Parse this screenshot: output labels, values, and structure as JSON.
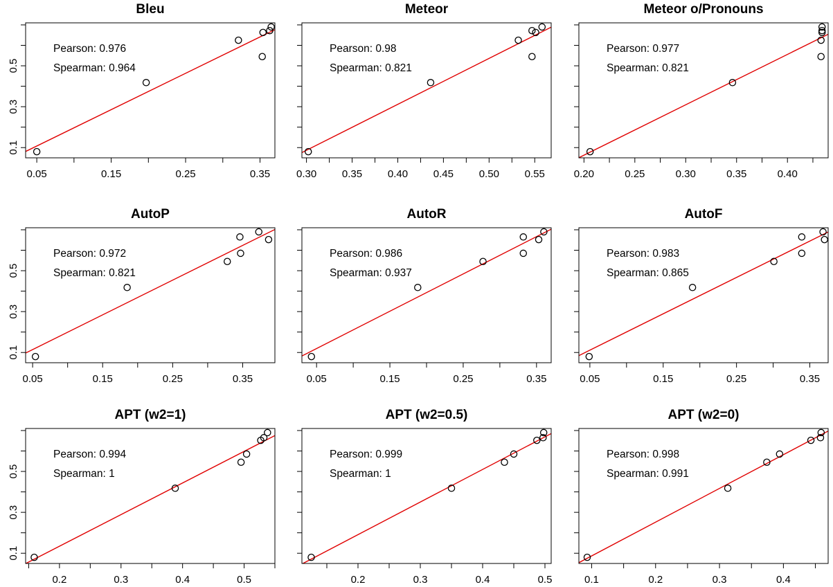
{
  "chart_data": [
    {
      "type": "scatter",
      "title": "Bleu",
      "xlabel": "",
      "ylabel": "",
      "xlim": [
        0.035,
        0.37
      ],
      "ylim": [
        0.05,
        0.71
      ],
      "xticks": [
        "0.05",
        "0.15",
        "0.25",
        "0.35"
      ],
      "yticks": [
        "0.1",
        "0.3",
        "0.5"
      ],
      "show_yticks": true,
      "points": [
        [
          0.05,
          0.08
        ],
        [
          0.197,
          0.418
        ],
        [
          0.321,
          0.625
        ],
        [
          0.353,
          0.545
        ],
        [
          0.354,
          0.663
        ],
        [
          0.363,
          0.672
        ],
        [
          0.365,
          0.69
        ]
      ],
      "annotations": [
        "Pearson: 0.976",
        "Spearman: 0.964"
      ],
      "fit_color": "#e00000"
    },
    {
      "type": "scatter",
      "title": "Meteor",
      "xlabel": "",
      "ylabel": "",
      "xlim": [
        0.295,
        0.568
      ],
      "ylim": [
        0.05,
        0.71
      ],
      "xticks": [
        "0.30",
        "0.35",
        "0.40",
        "0.45",
        "0.50",
        "0.55"
      ],
      "yticks": [
        "0.1",
        "0.3",
        "0.5"
      ],
      "show_yticks": false,
      "points": [
        [
          0.302,
          0.08
        ],
        [
          0.436,
          0.418
        ],
        [
          0.532,
          0.625
        ],
        [
          0.547,
          0.545
        ],
        [
          0.547,
          0.672
        ],
        [
          0.551,
          0.663
        ],
        [
          0.558,
          0.69
        ]
      ],
      "annotations": [
        "Pearson: 0.98",
        "Spearman: 0.821"
      ],
      "fit_color": "#e00000"
    },
    {
      "type": "scatter",
      "title": "Meteor o/Pronouns",
      "xlabel": "",
      "ylabel": "",
      "xlim": [
        0.195,
        0.44
      ],
      "ylim": [
        0.05,
        0.71
      ],
      "xticks": [
        "0.20",
        "0.25",
        "0.30",
        "0.35",
        "0.40"
      ],
      "yticks": [
        "0.1",
        "0.3",
        "0.5"
      ],
      "show_yticks": false,
      "points": [
        [
          0.206,
          0.08
        ],
        [
          0.346,
          0.418
        ],
        [
          0.433,
          0.545
        ],
        [
          0.433,
          0.625
        ],
        [
          0.434,
          0.663
        ],
        [
          0.434,
          0.672
        ],
        [
          0.434,
          0.69
        ]
      ],
      "annotations": [
        "Pearson: 0.977",
        "Spearman: 0.821"
      ],
      "fit_color": "#e00000"
    },
    {
      "type": "scatter",
      "title": "AutoP",
      "xlabel": "",
      "ylabel": "",
      "xlim": [
        0.04,
        0.396
      ],
      "ylim": [
        0.05,
        0.71
      ],
      "xticks": [
        "0.05",
        "0.15",
        "0.25",
        "0.35"
      ],
      "yticks": [
        "0.1",
        "0.3",
        "0.5"
      ],
      "show_yticks": true,
      "points": [
        [
          0.054,
          0.08
        ],
        [
          0.185,
          0.418
        ],
        [
          0.328,
          0.545
        ],
        [
          0.347,
          0.585
        ],
        [
          0.346,
          0.665
        ],
        [
          0.373,
          0.69
        ],
        [
          0.387,
          0.652
        ]
      ],
      "annotations": [
        "Pearson: 0.972",
        "Spearman: 0.821"
      ],
      "fit_color": "#e00000"
    },
    {
      "type": "scatter",
      "title": "AutoR",
      "xlabel": "",
      "ylabel": "",
      "xlim": [
        0.03,
        0.37
      ],
      "ylim": [
        0.05,
        0.71
      ],
      "xticks": [
        "0.05",
        "0.15",
        "0.25",
        "0.35"
      ],
      "yticks": [
        "0.1",
        "0.3",
        "0.5"
      ],
      "show_yticks": false,
      "points": [
        [
          0.043,
          0.08
        ],
        [
          0.188,
          0.418
        ],
        [
          0.277,
          0.545
        ],
        [
          0.332,
          0.585
        ],
        [
          0.332,
          0.665
        ],
        [
          0.353,
          0.652
        ],
        [
          0.36,
          0.69
        ]
      ],
      "annotations": [
        "Pearson: 0.986",
        "Spearman: 0.937"
      ],
      "fit_color": "#e00000"
    },
    {
      "type": "scatter",
      "title": "AutoF",
      "xlabel": "",
      "ylabel": "",
      "xlim": [
        0.035,
        0.375
      ],
      "ylim": [
        0.05,
        0.71
      ],
      "xticks": [
        "0.05",
        "0.15",
        "0.25",
        "0.35"
      ],
      "yticks": [
        "0.1",
        "0.3",
        "0.5"
      ],
      "show_yticks": false,
      "points": [
        [
          0.049,
          0.08
        ],
        [
          0.19,
          0.418
        ],
        [
          0.301,
          0.545
        ],
        [
          0.339,
          0.585
        ],
        [
          0.339,
          0.665
        ],
        [
          0.368,
          0.69
        ],
        [
          0.37,
          0.652
        ]
      ],
      "annotations": [
        "Pearson: 0.983",
        "Spearman: 0.865"
      ],
      "fit_color": "#e00000"
    },
    {
      "type": "scatter",
      "title": "APT (w2=1)",
      "xlabel": "",
      "ylabel": "",
      "xlim": [
        0.145,
        0.55
      ],
      "ylim": [
        0.05,
        0.71
      ],
      "xticks": [
        "0.2",
        "0.3",
        "0.4",
        "0.5"
      ],
      "yticks": [
        "0.1",
        "0.3",
        "0.5"
      ],
      "show_yticks": true,
      "points": [
        [
          0.159,
          0.08
        ],
        [
          0.388,
          0.418
        ],
        [
          0.495,
          0.545
        ],
        [
          0.504,
          0.585
        ],
        [
          0.527,
          0.652
        ],
        [
          0.532,
          0.665
        ],
        [
          0.538,
          0.69
        ]
      ],
      "annotations": [
        "Pearson: 0.994",
        "Spearman: 1"
      ],
      "fit_color": "#e00000"
    },
    {
      "type": "scatter",
      "title": "APT (w2=0.5)",
      "xlabel": "",
      "ylabel": "",
      "xlim": [
        0.11,
        0.51
      ],
      "ylim": [
        0.05,
        0.71
      ],
      "xticks": [
        "0.2",
        "0.3",
        "0.4",
        "0.5"
      ],
      "yticks": [
        "0.1",
        "0.3",
        "0.5"
      ],
      "show_yticks": false,
      "points": [
        [
          0.125,
          0.08
        ],
        [
          0.35,
          0.418
        ],
        [
          0.435,
          0.545
        ],
        [
          0.45,
          0.585
        ],
        [
          0.487,
          0.652
        ],
        [
          0.497,
          0.665
        ],
        [
          0.498,
          0.69
        ]
      ],
      "annotations": [
        "Pearson: 0.999",
        "Spearman: 1"
      ],
      "fit_color": "#e00000"
    },
    {
      "type": "scatter",
      "title": "APT (w2=0)",
      "xlabel": "",
      "ylabel": "",
      "xlim": [
        0.08,
        0.47
      ],
      "ylim": [
        0.05,
        0.71
      ],
      "xticks": [
        "0.1",
        "0.2",
        "0.3",
        "0.4"
      ],
      "yticks": [
        "0.1",
        "0.3",
        "0.5"
      ],
      "show_yticks": false,
      "points": [
        [
          0.093,
          0.08
        ],
        [
          0.313,
          0.418
        ],
        [
          0.374,
          0.545
        ],
        [
          0.394,
          0.585
        ],
        [
          0.443,
          0.652
        ],
        [
          0.458,
          0.665
        ],
        [
          0.459,
          0.69
        ]
      ],
      "annotations": [
        "Pearson: 0.998",
        "Spearman: 0.991"
      ],
      "fit_color": "#e00000"
    }
  ]
}
